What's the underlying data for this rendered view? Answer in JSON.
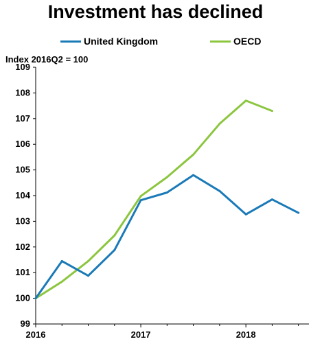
{
  "chart_data": {
    "type": "line",
    "title": "Investment has declined",
    "ylabel": "Index 2016Q2 = 100",
    "xlabel": "",
    "ylim": [
      99,
      109
    ],
    "yticks": [
      "99",
      "100",
      "101",
      "102",
      "103",
      "104",
      "105",
      "106",
      "107",
      "108",
      "109"
    ],
    "x_tick_labels": [
      {
        "label": "2016",
        "x": 2016.0
      },
      {
        "label": "2017",
        "x": 2017.0
      },
      {
        "label": "2018",
        "x": 2018.0
      }
    ],
    "xlim": [
      2016.0,
      2018.6
    ],
    "legend_position": "top",
    "series": [
      {
        "name": "United Kingdom",
        "color": "#1a7ab8",
        "x": [
          2016.0,
          2016.25,
          2016.5,
          2016.75,
          2017.0,
          2017.25,
          2017.5,
          2017.75,
          2018.0,
          2018.25,
          2018.5
        ],
        "values": [
          100.0,
          101.45,
          100.88,
          101.88,
          103.82,
          104.12,
          104.8,
          104.18,
          103.27,
          103.85,
          103.33
        ]
      },
      {
        "name": "OECD",
        "color": "#8cc63f",
        "x": [
          2016.0,
          2016.25,
          2016.5,
          2016.75,
          2017.0,
          2017.25,
          2017.5,
          2017.75,
          2018.0,
          2018.25
        ],
        "values": [
          100.0,
          100.65,
          101.45,
          102.45,
          103.98,
          104.72,
          105.6,
          106.8,
          107.7,
          107.3
        ]
      }
    ]
  }
}
